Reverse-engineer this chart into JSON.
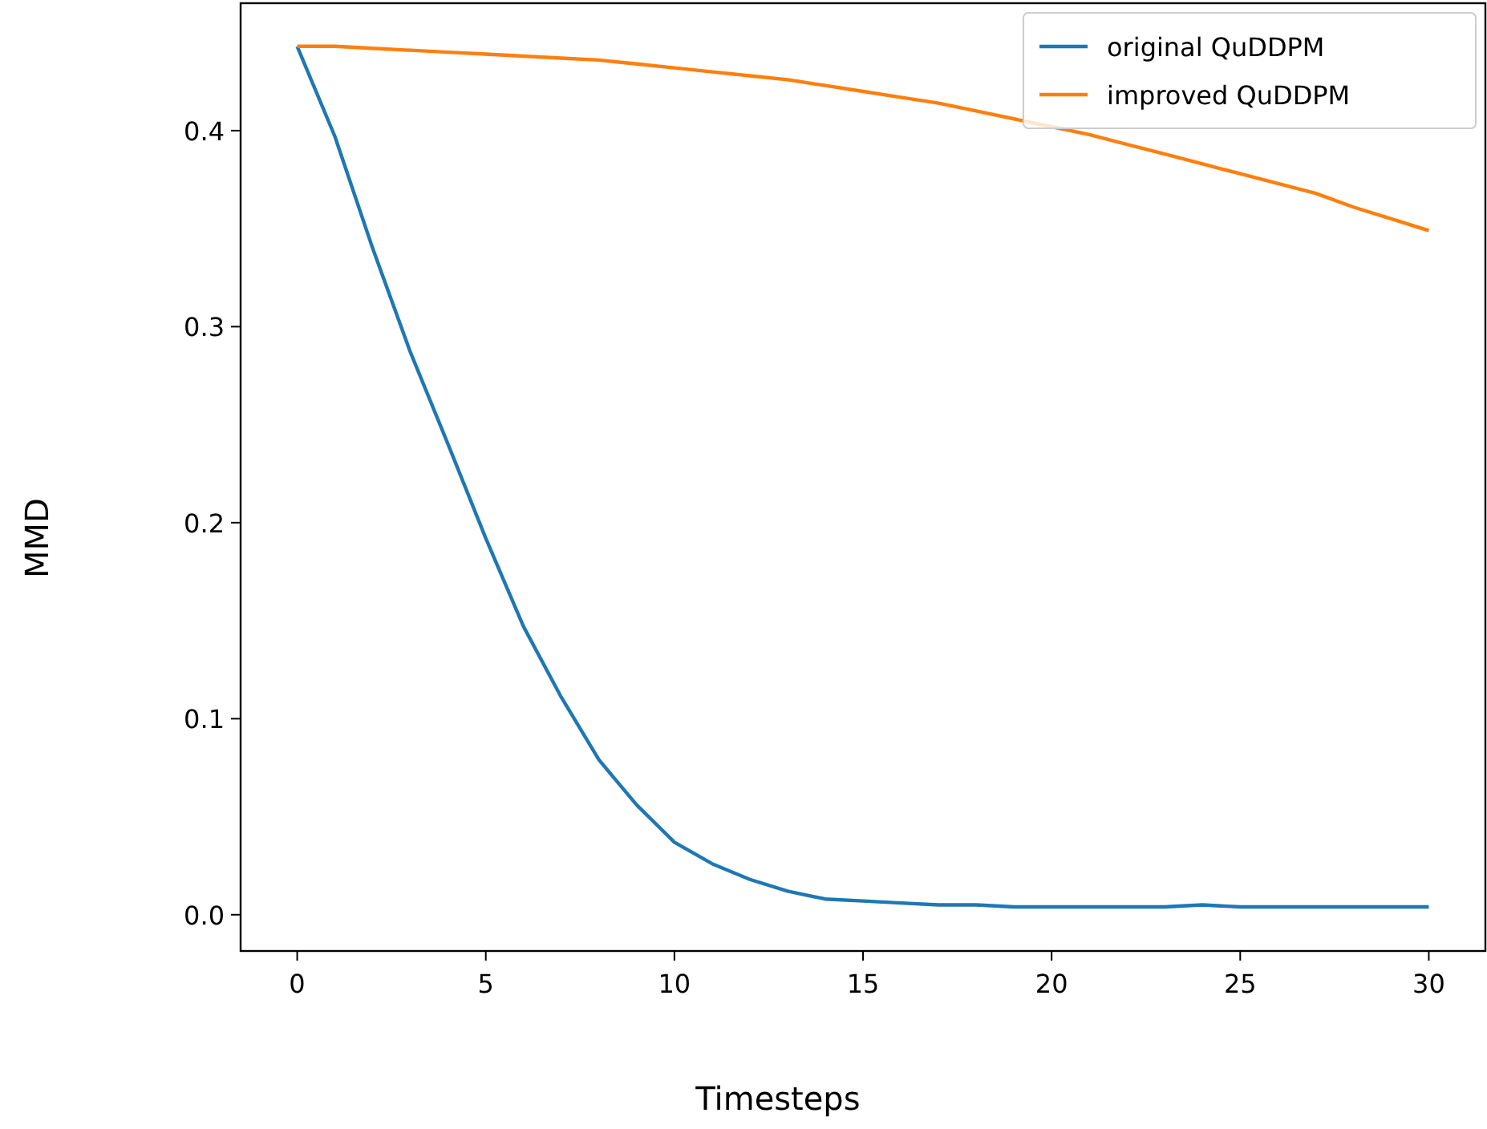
{
  "chart_data": {
    "type": "line",
    "xlabel": "Timesteps",
    "ylabel": "MMD",
    "x": [
      0,
      1,
      2,
      3,
      4,
      5,
      6,
      7,
      8,
      9,
      10,
      11,
      12,
      13,
      14,
      15,
      16,
      17,
      18,
      19,
      20,
      21,
      22,
      23,
      24,
      25,
      26,
      27,
      28,
      29,
      30
    ],
    "series": [
      {
        "name": "original QuDDPM",
        "color": "#1f77b4",
        "values": [
          0.443,
          0.397,
          0.34,
          0.287,
          0.24,
          0.192,
          0.147,
          0.111,
          0.079,
          0.056,
          0.037,
          0.026,
          0.018,
          0.012,
          0.008,
          0.007,
          0.006,
          0.005,
          0.005,
          0.004,
          0.004,
          0.004,
          0.004,
          0.004,
          0.005,
          0.004,
          0.004,
          0.004,
          0.004,
          0.004,
          0.004
        ]
      },
      {
        "name": "improved QuDDPM",
        "color": "#ff7f0e",
        "values": [
          0.443,
          0.443,
          0.442,
          0.441,
          0.44,
          0.439,
          0.438,
          0.437,
          0.436,
          0.434,
          0.432,
          0.43,
          0.428,
          0.426,
          0.423,
          0.42,
          0.417,
          0.414,
          0.41,
          0.406,
          0.402,
          0.398,
          0.393,
          0.388,
          0.383,
          0.378,
          0.373,
          0.368,
          0.361,
          0.355,
          0.349
        ]
      }
    ],
    "xlim": [
      -1.5,
      31.5
    ],
    "xticks": [
      0,
      5,
      10,
      15,
      20,
      25,
      30
    ],
    "ylim": [
      -0.0185,
      0.465
    ],
    "yticks": [
      {
        "value": 0,
        "label": "0.0"
      },
      {
        "value": 0.1,
        "label": "0.1"
      },
      {
        "value": 0.2,
        "label": "0.2"
      },
      {
        "value": 0.3,
        "label": "0.3"
      },
      {
        "value": 0.4,
        "label": "0.4"
      }
    ],
    "legend": "top right",
    "grid": false,
    "marker": "none",
    "line_style": "solid"
  }
}
